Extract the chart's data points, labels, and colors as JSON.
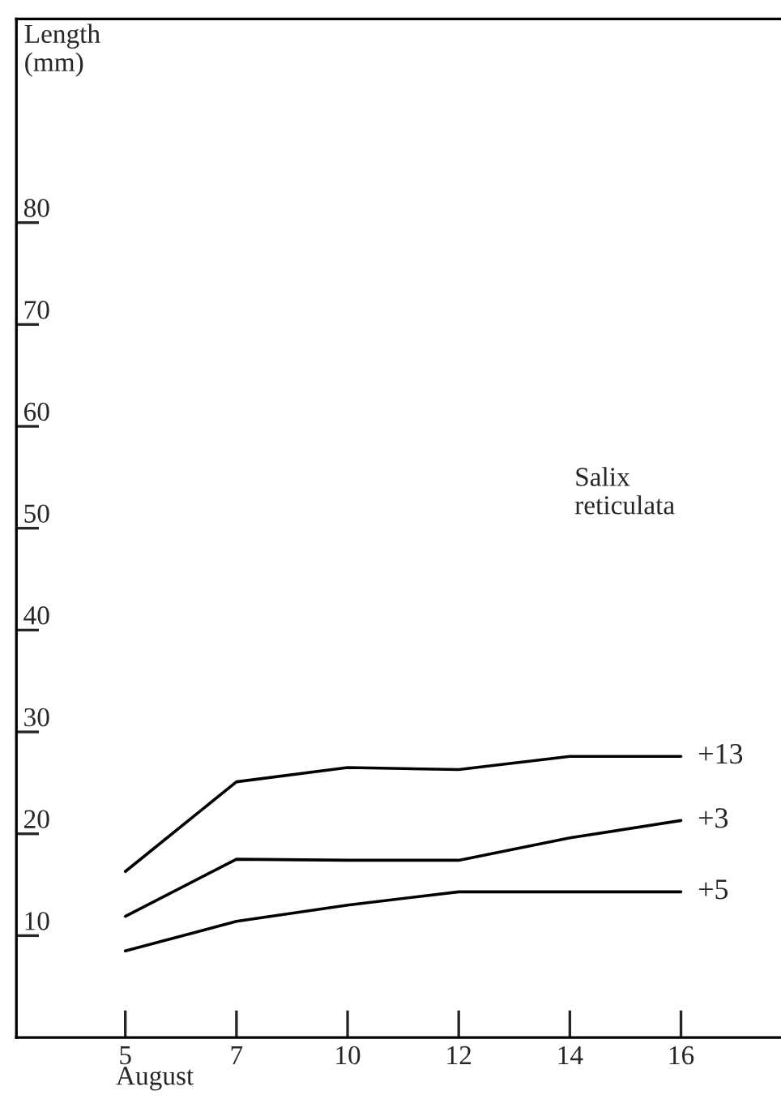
{
  "chart_data": {
    "type": "line",
    "ylabel": "Length\n(mm)",
    "xlabel": "August",
    "categories": [
      "5",
      "7",
      "10",
      "12",
      "14",
      "16"
    ],
    "series": [
      {
        "name": "+13",
        "color": "#000000",
        "values": [
          16.3,
          25.1,
          26.5,
          26.3,
          27.6,
          27.6
        ]
      },
      {
        "name": "+3",
        "color": "#000000",
        "values": [
          11.9,
          17.5,
          17.4,
          17.4,
          19.6,
          21.3
        ]
      },
      {
        "name": "+5",
        "color": "#000000",
        "values": [
          8.5,
          11.4,
          13.0,
          14.3,
          14.3,
          14.3
        ]
      }
    ],
    "ylim": [
      0,
      100
    ],
    "yticks": [
      10,
      20,
      30,
      40,
      50,
      60,
      70,
      80
    ],
    "annotations": [
      "Salix\nreticulata"
    ],
    "grid": false,
    "legend": false,
    "marker": "none",
    "line_style": "solid"
  }
}
